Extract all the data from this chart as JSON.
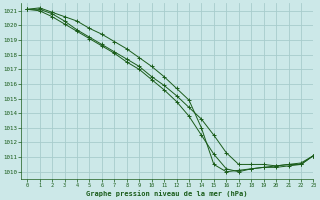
{
  "title": "Graphe pression niveau de la mer (hPa)",
  "background_color": "#cce8e8",
  "grid_color": "#a8cccc",
  "line_color": "#1a5c1a",
  "xlim": [
    -0.5,
    23
  ],
  "ylim": [
    1009.5,
    1021.5
  ],
  "x_ticks": [
    0,
    1,
    2,
    3,
    4,
    5,
    6,
    7,
    8,
    9,
    10,
    11,
    12,
    13,
    14,
    15,
    16,
    17,
    18,
    19,
    20,
    21,
    22,
    23
  ],
  "y_ticks": [
    1010,
    1011,
    1012,
    1013,
    1014,
    1015,
    1016,
    1017,
    1018,
    1019,
    1020,
    1021
  ],
  "series": [
    {
      "x": [
        0,
        1,
        2,
        3,
        4,
        5,
        6,
        7,
        8,
        9,
        10,
        11,
        12,
        13,
        14,
        15,
        16,
        17,
        18,
        19,
        20,
        21,
        22,
        23
      ],
      "y": [
        1021.1,
        1021.2,
        1020.9,
        1020.6,
        1020.3,
        1019.8,
        1019.4,
        1018.9,
        1018.4,
        1017.8,
        1017.2,
        1016.5,
        1015.7,
        1014.9,
        1013.0,
        1010.5,
        1010.0,
        1010.1,
        1010.2,
        1010.3,
        1010.4,
        1010.5,
        1010.5,
        1011.1
      ]
    },
    {
      "x": [
        0,
        1,
        2,
        3,
        4,
        5,
        6,
        7,
        8,
        9,
        10,
        11,
        12,
        13,
        14,
        15,
        16,
        17,
        18,
        19,
        20,
        21,
        22,
        23
      ],
      "y": [
        1021.1,
        1021.0,
        1020.6,
        1020.1,
        1019.6,
        1019.1,
        1018.6,
        1018.1,
        1017.5,
        1017.0,
        1016.3,
        1015.6,
        1014.8,
        1013.8,
        1012.5,
        1011.2,
        1010.2,
        1010.0,
        1010.2,
        1010.3,
        1010.3,
        1010.4,
        1010.5,
        1011.1
      ]
    },
    {
      "x": [
        0,
        1,
        2,
        3,
        4,
        5,
        6,
        7,
        8,
        9,
        10,
        11,
        12,
        13,
        14,
        15,
        16,
        17,
        18,
        19,
        20,
        21,
        22,
        23
      ],
      "y": [
        1021.1,
        1021.1,
        1020.8,
        1020.3,
        1019.7,
        1019.2,
        1018.7,
        1018.2,
        1017.7,
        1017.2,
        1016.5,
        1015.9,
        1015.2,
        1014.4,
        1013.6,
        1012.5,
        1011.3,
        1010.5,
        1010.5,
        1010.5,
        1010.4,
        1010.5,
        1010.6,
        1011.1
      ]
    }
  ]
}
